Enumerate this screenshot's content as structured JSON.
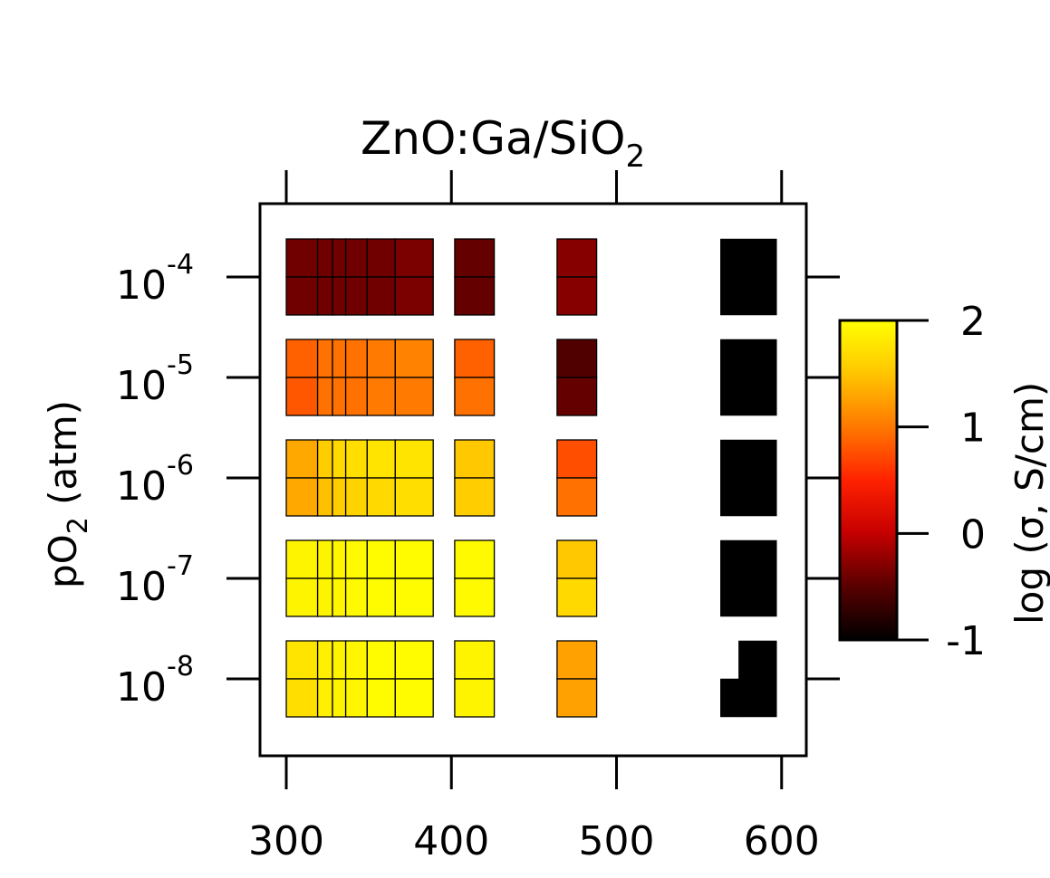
{
  "chart_data": {
    "type": "heatmap",
    "title": {
      "main": "ZnO:Ga/SiO",
      "sub": "2"
    },
    "ylabel": {
      "p": "pO",
      "sub": "2",
      "rest": " (atm)"
    },
    "xlabel": "",
    "x_ticks": [
      300,
      400,
      500,
      600
    ],
    "x_tick_labels": [
      "300",
      "400",
      "500",
      "600"
    ],
    "xlim": [
      284,
      616
    ],
    "y_ticks": [
      -4,
      -5,
      -6,
      -7,
      -8
    ],
    "y_tick_labels": [
      {
        "base": "10",
        "exp": "-4"
      },
      {
        "base": "10",
        "exp": "-5"
      },
      {
        "base": "10",
        "exp": "-6"
      },
      {
        "base": "10",
        "exp": "-7"
      },
      {
        "base": "10",
        "exp": "-8"
      }
    ],
    "ylim": [
      -8.8,
      -3.3
    ],
    "y_scale": "log10 pO2",
    "colorbar": {
      "label": "log (σ, S/cm)",
      "range": [
        -1,
        2
      ],
      "ticks": [
        2,
        1,
        0,
        -1
      ],
      "tick_labels": [
        "2",
        "1",
        "0",
        "-1"
      ],
      "colormap": [
        "#000000",
        "#5a0000",
        "#c80000",
        "#ff2200",
        "#ff7a00",
        "#ffc800",
        "#ffff00"
      ]
    },
    "grid": false,
    "cells": [
      {
        "x": [
          300,
          319
        ],
        "row": -4,
        "values": [
          -0.4,
          -0.4
        ]
      },
      {
        "x": [
          319,
          328
        ],
        "row": -4,
        "values": [
          -0.4,
          -0.4
        ]
      },
      {
        "x": [
          328,
          336
        ],
        "row": -4,
        "values": [
          -0.4,
          -0.4
        ]
      },
      {
        "x": [
          336,
          349
        ],
        "row": -4,
        "values": [
          -0.4,
          -0.4
        ]
      },
      {
        "x": [
          349,
          366
        ],
        "row": -4,
        "values": [
          -0.4,
          -0.4
        ]
      },
      {
        "x": [
          366,
          389
        ],
        "row": -4,
        "values": [
          -0.35,
          -0.35
        ]
      },
      {
        "x": [
          402,
          426
        ],
        "row": -4,
        "values": [
          -0.45,
          -0.45
        ]
      },
      {
        "x": [
          464,
          488
        ],
        "row": -4,
        "values": [
          -0.3,
          -0.3
        ]
      },
      {
        "x": [
          563,
          597
        ],
        "row": -4,
        "values": [
          -1,
          -1
        ]
      },
      {
        "x": [
          300,
          319
        ],
        "row": -5,
        "values": [
          0.85,
          0.8
        ]
      },
      {
        "x": [
          319,
          328
        ],
        "row": -5,
        "values": [
          0.95,
          0.95
        ]
      },
      {
        "x": [
          328,
          336
        ],
        "row": -5,
        "values": [
          0.95,
          0.95
        ]
      },
      {
        "x": [
          336,
          349
        ],
        "row": -5,
        "values": [
          0.95,
          0.95
        ]
      },
      {
        "x": [
          349,
          366
        ],
        "row": -5,
        "values": [
          1.0,
          1.0
        ]
      },
      {
        "x": [
          366,
          389
        ],
        "row": -5,
        "values": [
          1.05,
          1.0
        ]
      },
      {
        "x": [
          402,
          426
        ],
        "row": -5,
        "values": [
          0.85,
          0.95
        ]
      },
      {
        "x": [
          464,
          488
        ],
        "row": -5,
        "values": [
          -0.55,
          -0.45
        ]
      },
      {
        "x": [
          563,
          597
        ],
        "row": -5,
        "values": [
          -1,
          -1
        ]
      },
      {
        "x": [
          300,
          319
        ],
        "row": -6,
        "values": [
          1.3,
          1.3
        ]
      },
      {
        "x": [
          319,
          328
        ],
        "row": -6,
        "values": [
          1.55,
          1.45
        ]
      },
      {
        "x": [
          328,
          336
        ],
        "row": -6,
        "values": [
          1.65,
          1.55
        ]
      },
      {
        "x": [
          336,
          349
        ],
        "row": -6,
        "values": [
          1.7,
          1.6
        ]
      },
      {
        "x": [
          349,
          366
        ],
        "row": -6,
        "values": [
          1.75,
          1.65
        ]
      },
      {
        "x": [
          366,
          389
        ],
        "row": -6,
        "values": [
          1.75,
          1.7
        ]
      },
      {
        "x": [
          402,
          426
        ],
        "row": -6,
        "values": [
          1.5,
          1.55
        ]
      },
      {
        "x": [
          464,
          488
        ],
        "row": -6,
        "values": [
          0.75,
          0.95
        ]
      },
      {
        "x": [
          563,
          597
        ],
        "row": -6,
        "values": [
          -1,
          -1
        ]
      },
      {
        "x": [
          300,
          319
        ],
        "row": -7,
        "values": [
          1.9,
          1.9
        ]
      },
      {
        "x": [
          319,
          328
        ],
        "row": -7,
        "values": [
          1.9,
          1.9
        ]
      },
      {
        "x": [
          328,
          336
        ],
        "row": -7,
        "values": [
          1.92,
          1.92
        ]
      },
      {
        "x": [
          336,
          349
        ],
        "row": -7,
        "values": [
          1.95,
          1.95
        ]
      },
      {
        "x": [
          349,
          366
        ],
        "row": -7,
        "values": [
          1.97,
          1.97
        ]
      },
      {
        "x": [
          366,
          389
        ],
        "row": -7,
        "values": [
          1.97,
          1.97
        ]
      },
      {
        "x": [
          402,
          426
        ],
        "row": -7,
        "values": [
          1.95,
          1.95
        ]
      },
      {
        "x": [
          464,
          488
        ],
        "row": -7,
        "values": [
          1.5,
          1.65
        ]
      },
      {
        "x": [
          563,
          597
        ],
        "row": -7,
        "values": [
          -1,
          -1
        ]
      },
      {
        "x": [
          300,
          319
        ],
        "row": -8,
        "values": [
          1.75,
          1.7
        ]
      },
      {
        "x": [
          319,
          328
        ],
        "row": -8,
        "values": [
          1.85,
          1.85
        ]
      },
      {
        "x": [
          328,
          336
        ],
        "row": -8,
        "values": [
          1.9,
          1.9
        ]
      },
      {
        "x": [
          336,
          349
        ],
        "row": -8,
        "values": [
          1.92,
          1.92
        ]
      },
      {
        "x": [
          349,
          366
        ],
        "row": -8,
        "values": [
          1.97,
          1.97
        ]
      },
      {
        "x": [
          366,
          389
        ],
        "row": -8,
        "values": [
          1.97,
          1.97
        ]
      },
      {
        "x": [
          402,
          426
        ],
        "row": -8,
        "values": [
          1.9,
          1.9
        ]
      },
      {
        "x": [
          464,
          488
        ],
        "row": -8,
        "values": [
          1.25,
          1.25
        ]
      },
      {
        "x": [
          574,
          597
        ],
        "row": -8,
        "values": [
          -1,
          -1
        ]
      },
      {
        "x": [
          563,
          574
        ],
        "row": -8,
        "values": [
          null,
          -1
        ]
      }
    ]
  }
}
